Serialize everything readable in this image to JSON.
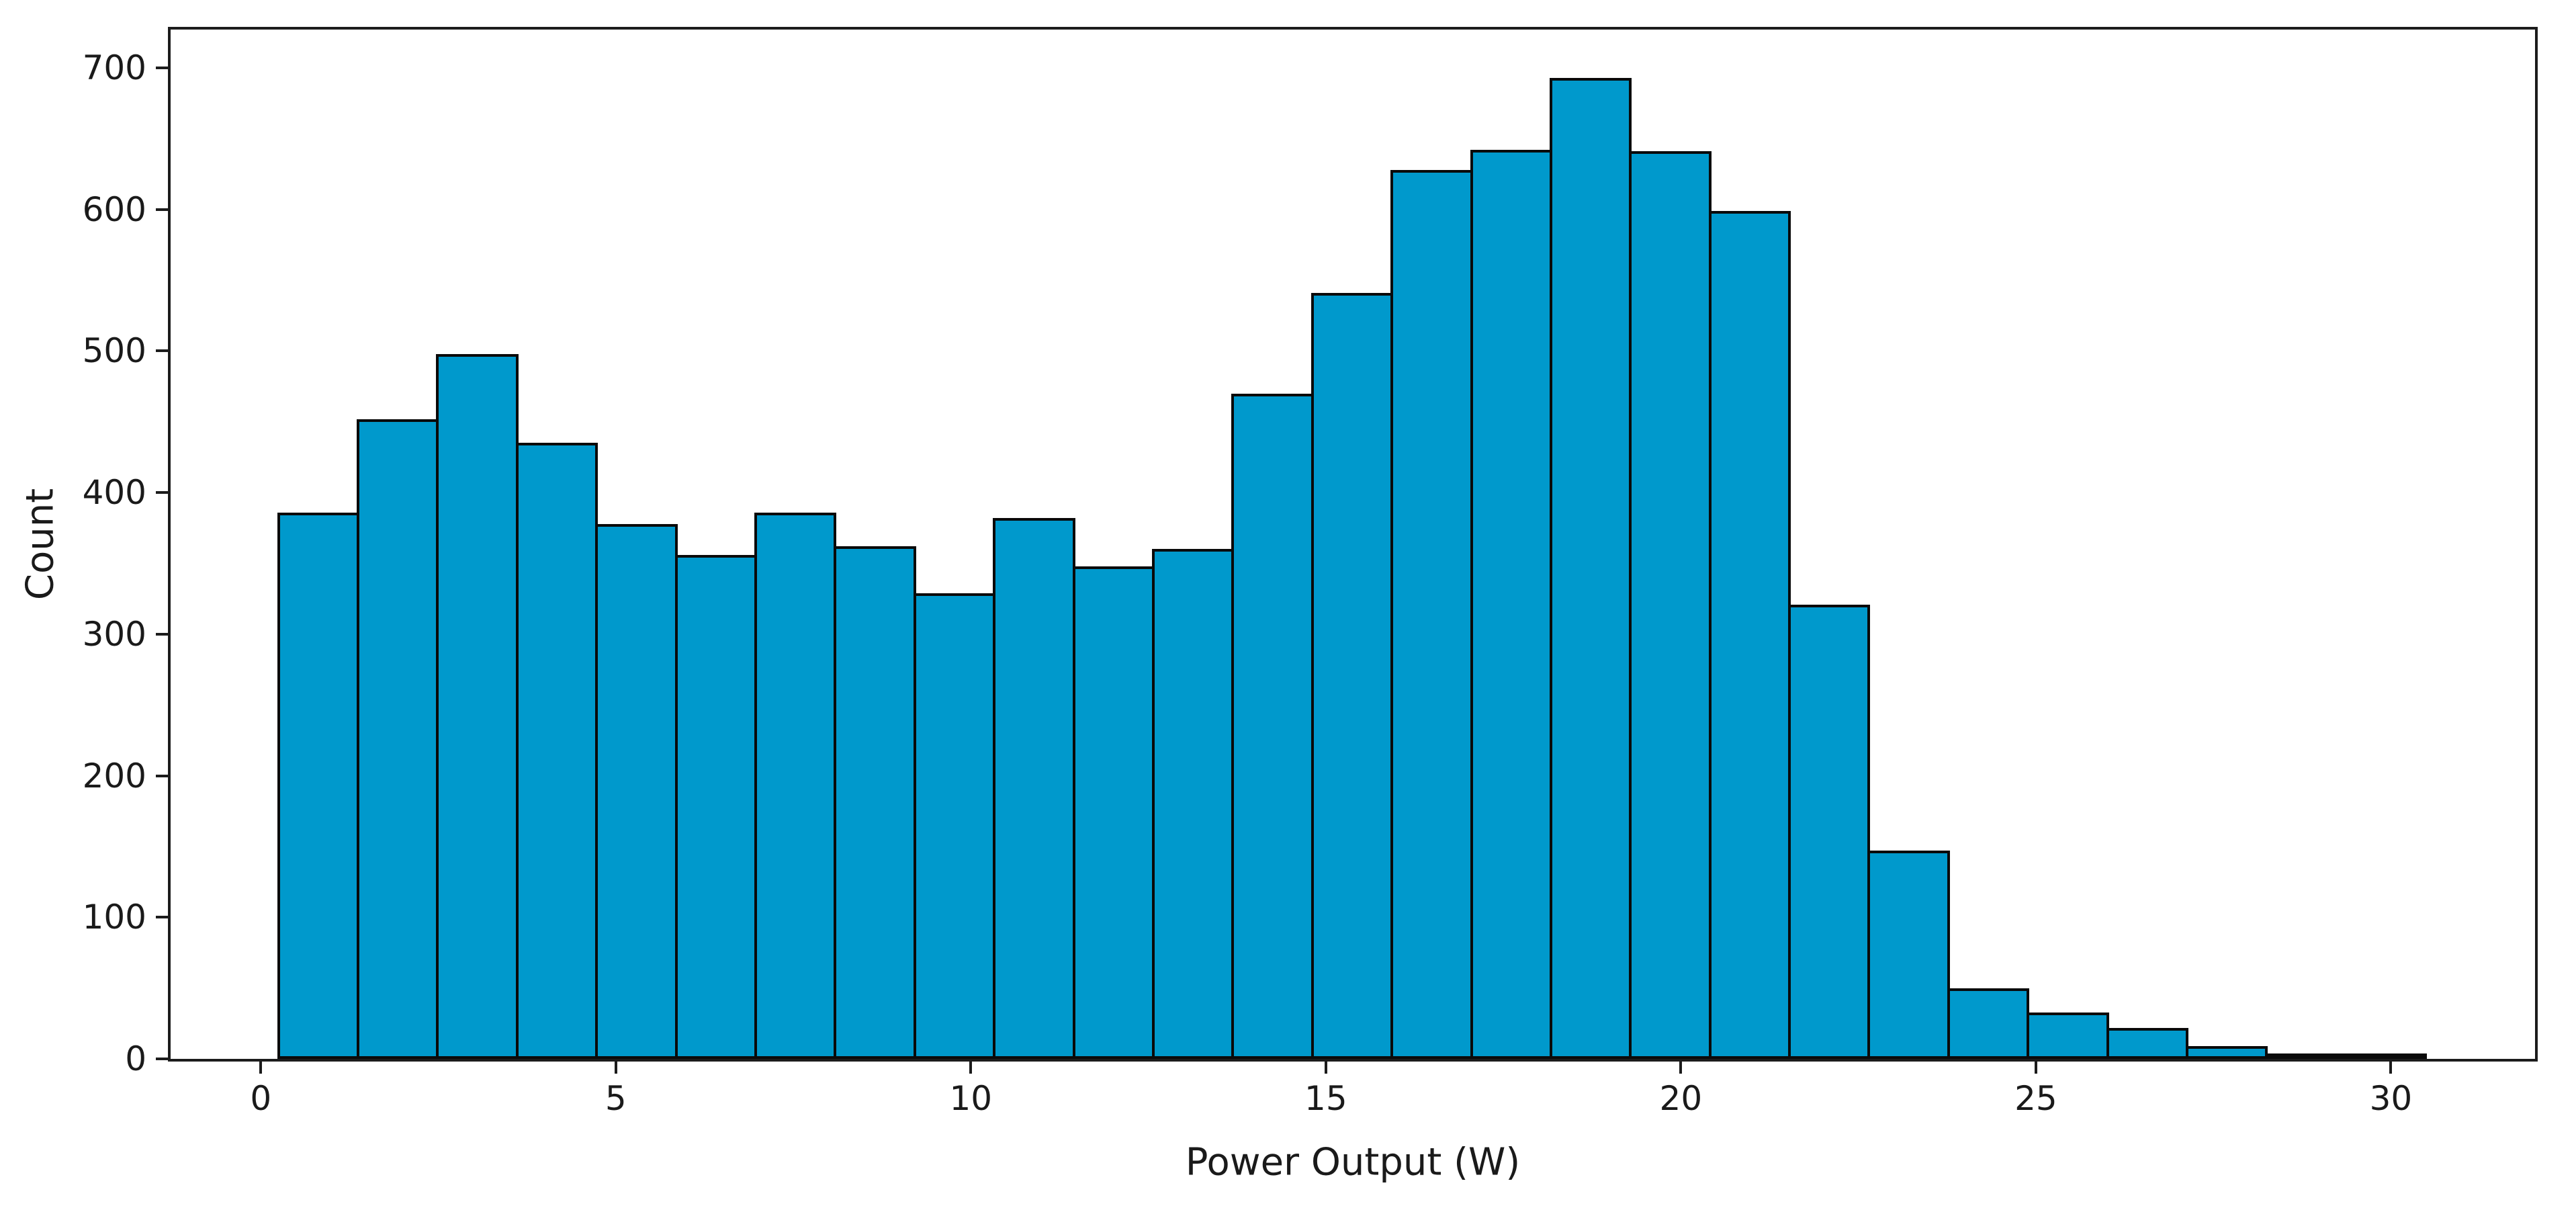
{
  "chart_data": {
    "type": "bar",
    "subtype": "histogram",
    "title": "",
    "xlabel": "Power Output (W)",
    "ylabel": "Count",
    "n_bins": 27,
    "bin_start": 0.25,
    "bin_width": 1.12,
    "values": [
      385,
      451,
      497,
      434,
      377,
      355,
      385,
      361,
      328,
      381,
      347,
      359,
      469,
      540,
      627,
      641,
      692,
      640,
      598,
      320,
      146,
      49,
      32,
      21,
      8,
      2,
      3
    ],
    "x_ticks": [
      0,
      5,
      10,
      15,
      20,
      25,
      30
    ],
    "y_ticks": [
      0,
      100,
      200,
      300,
      400,
      500,
      600,
      700
    ],
    "xlim": [
      -1.27,
      32.03
    ],
    "ylim": [
      0,
      727
    ],
    "grid": false,
    "legend": "none",
    "frame": "full-box",
    "colors": {
      "bar_fill": "#0099cc",
      "bar_edge": "#0a0a0a",
      "axis": "#1c1c1c",
      "text": "#1a1a1a",
      "background": "#ffffff"
    }
  }
}
